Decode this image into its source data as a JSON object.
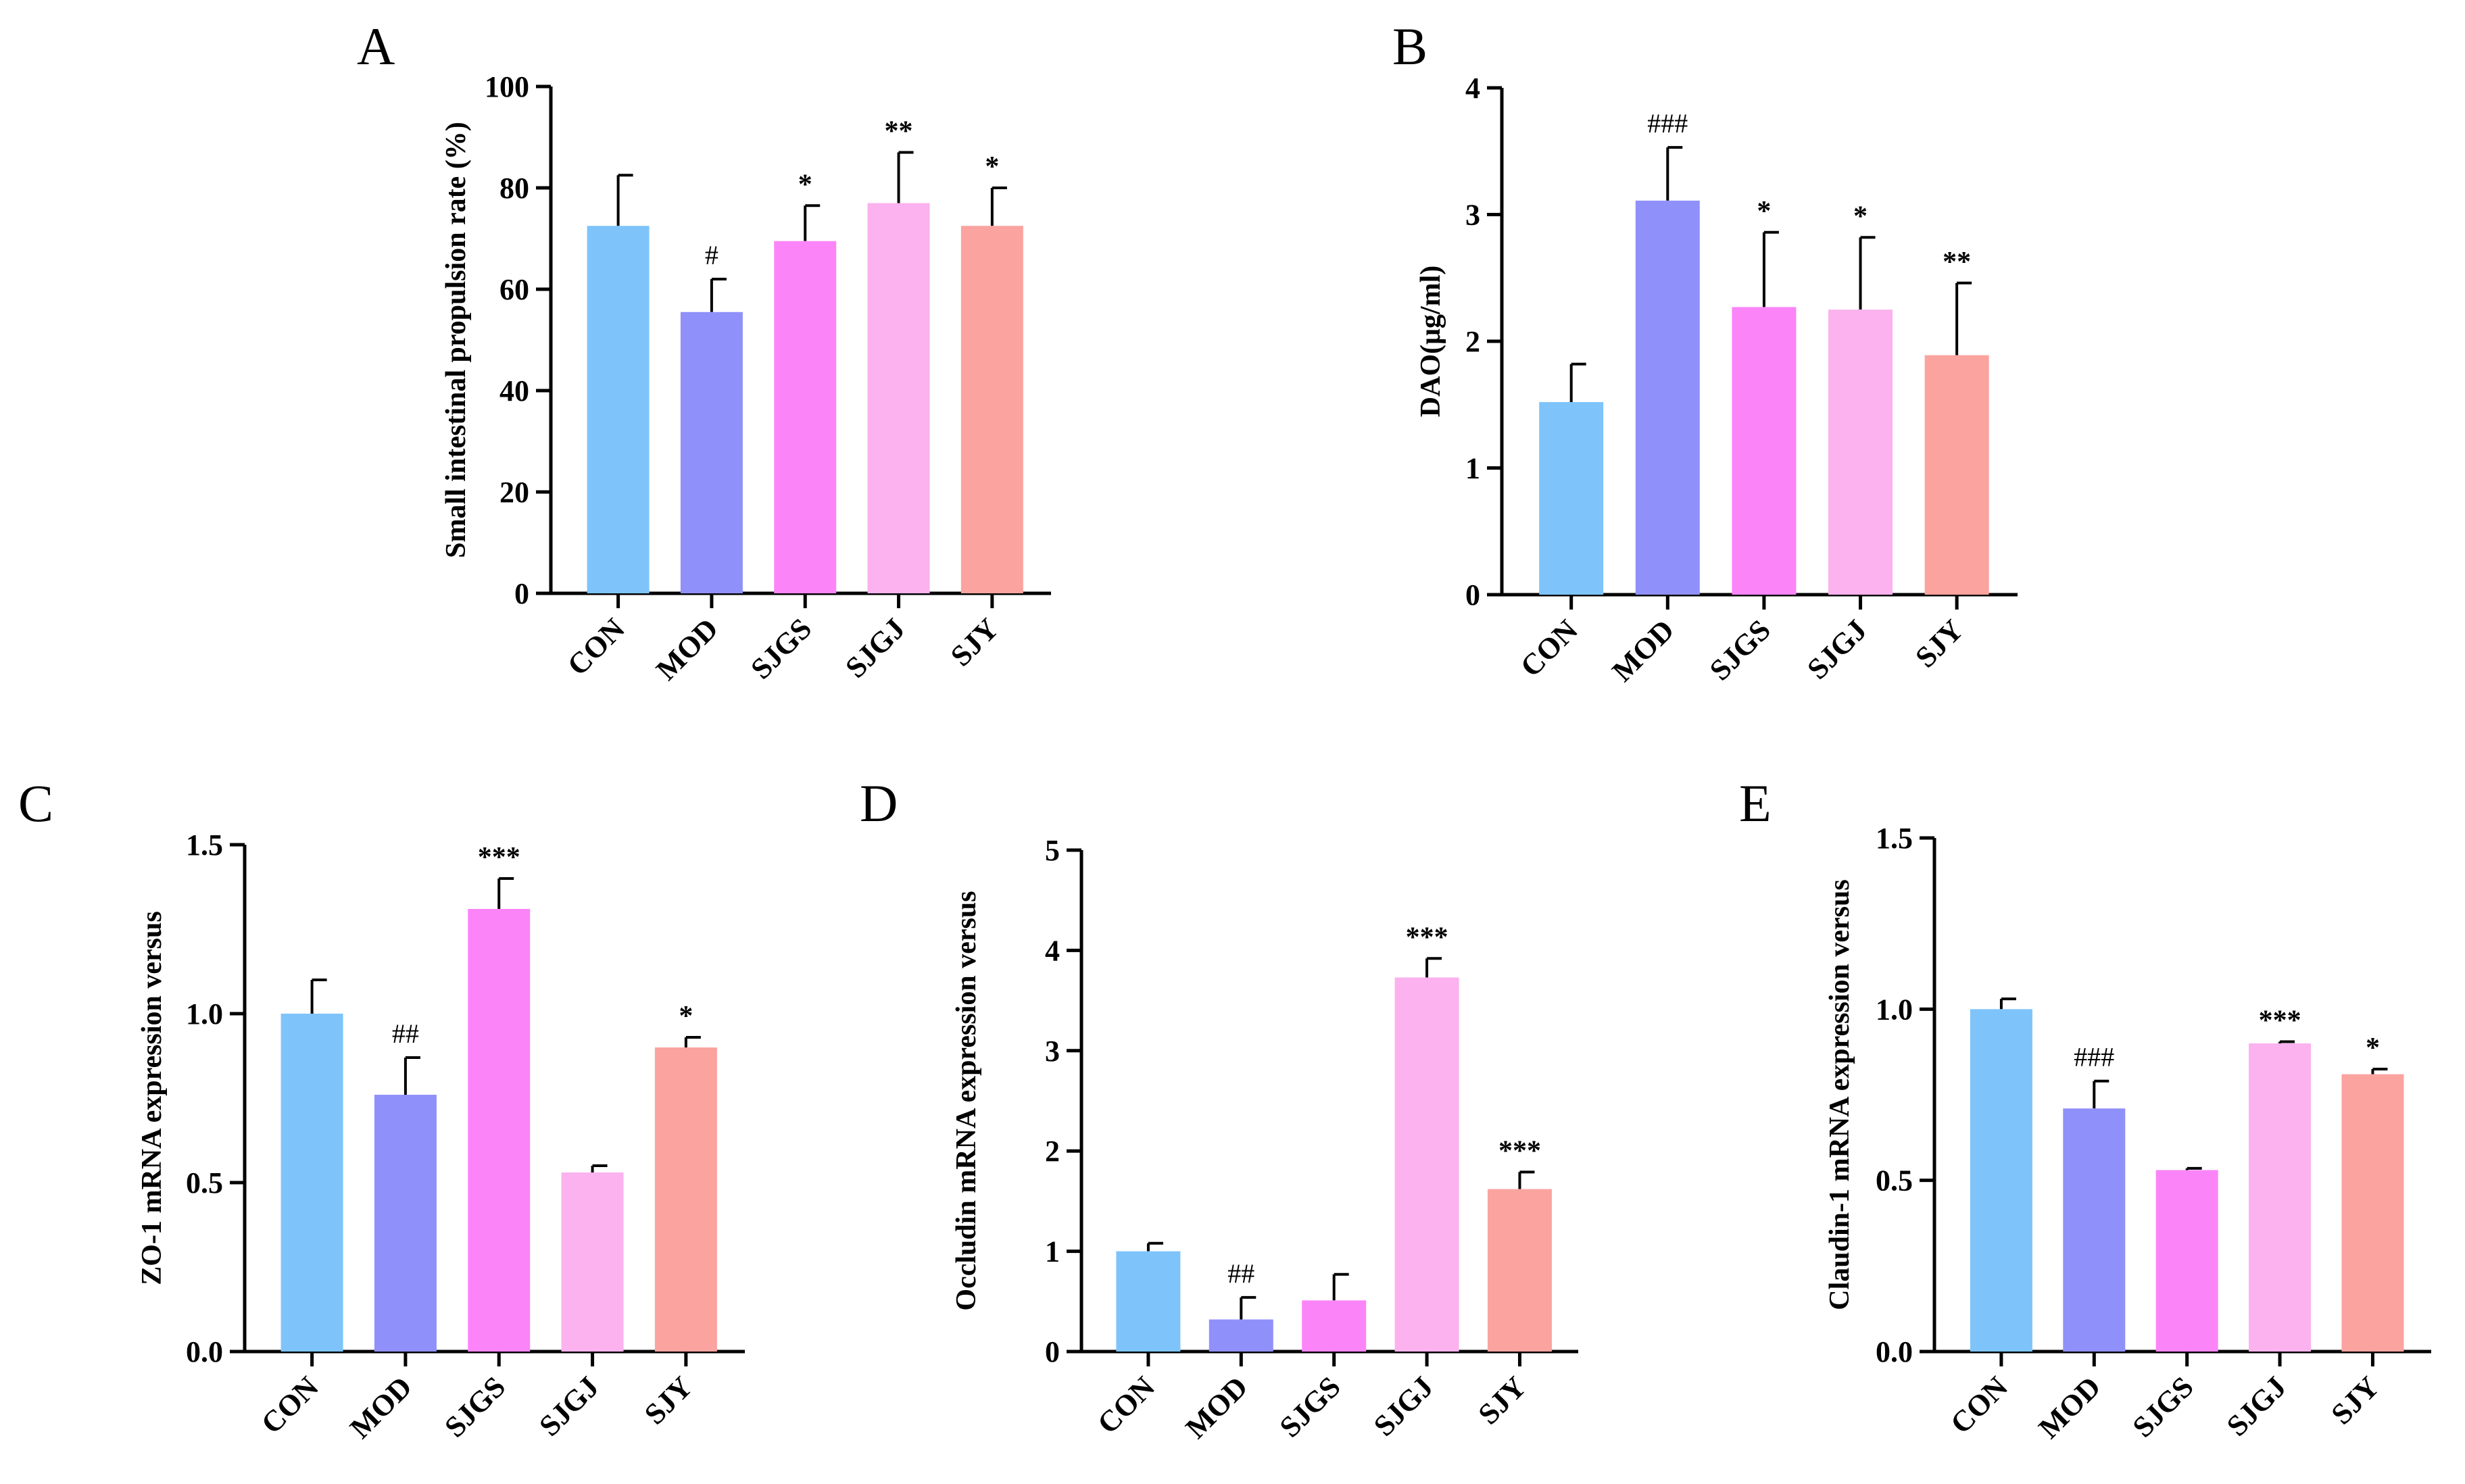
{
  "colors": [
    "#7ec4fb",
    "#9090fb",
    "#fb85f8",
    "#fbb2ee",
    "#fba39f"
  ],
  "chart_data": [
    {
      "panel": "A",
      "type": "bar",
      "categories": [
        "CON",
        "MOD",
        "SJGS",
        "SJGJ",
        "SJY"
      ],
      "values": [
        72.5,
        55.5,
        69.5,
        77,
        72.5
      ],
      "errors": [
        10,
        6.5,
        7,
        10,
        7.5
      ],
      "significance": [
        "",
        "#",
        "*",
        "**",
        "*"
      ],
      "ylabel": "Small intestinal propulsion rate (%)",
      "ylim": [
        0,
        100
      ],
      "yticks": [
        0,
        20,
        40,
        60,
        80,
        100
      ],
      "ytick_labels": [
        "0",
        "20",
        "40",
        "60",
        "80",
        "100"
      ]
    },
    {
      "panel": "B",
      "type": "bar",
      "categories": [
        "CON",
        "MOD",
        "SJGS",
        "SJGJ",
        "SJY"
      ],
      "values": [
        1.52,
        3.11,
        2.27,
        2.25,
        1.89
      ],
      "errors": [
        0.3,
        0.42,
        0.59,
        0.57,
        0.57
      ],
      "significance": [
        "",
        "###",
        "*",
        "*",
        "**"
      ],
      "ylabel": "DAO(μg/ml)",
      "ylim": [
        0,
        4
      ],
      "yticks": [
        0,
        1,
        2,
        3,
        4
      ],
      "ytick_labels": [
        "0",
        "1",
        "2",
        "3",
        "4"
      ]
    },
    {
      "panel": "C",
      "type": "bar",
      "categories": [
        "CON",
        "MOD",
        "SJGS",
        "SJGJ",
        "SJY"
      ],
      "values": [
        1.0,
        0.76,
        1.31,
        0.53,
        0.9
      ],
      "errors": [
        0.1,
        0.11,
        0.09,
        0.02,
        0.03
      ],
      "significance": [
        "",
        "##",
        "***",
        "",
        "*"
      ],
      "ylabel": "ZO-1 mRNA expression versus",
      "ylim": [
        0,
        1.5
      ],
      "yticks": [
        0,
        0.5,
        1.0,
        1.5
      ],
      "ytick_labels": [
        "0.0",
        "0.5",
        "1.0",
        "1.5"
      ]
    },
    {
      "panel": "D",
      "type": "bar",
      "categories": [
        "CON",
        "MOD",
        "SJGS",
        "SJGJ",
        "SJY"
      ],
      "values": [
        1.0,
        0.32,
        0.51,
        3.73,
        1.62
      ],
      "errors": [
        0.08,
        0.22,
        0.26,
        0.19,
        0.17
      ],
      "significance": [
        "",
        "##",
        "",
        "***",
        "***"
      ],
      "ylabel": "Occludin mRNA expression versus",
      "ylim": [
        0,
        5
      ],
      "yticks": [
        0,
        1,
        2,
        3,
        4,
        5
      ],
      "ytick_labels": [
        "0",
        "1",
        "2",
        "3",
        "4",
        "5"
      ]
    },
    {
      "panel": "E",
      "type": "bar",
      "categories": [
        "CON",
        "MOD",
        "SJGS",
        "SJGJ",
        "SJY"
      ],
      "values": [
        1.0,
        0.71,
        0.53,
        0.9,
        0.81
      ],
      "errors": [
        0.03,
        0.08,
        0.005,
        0.005,
        0.015
      ],
      "significance": [
        "",
        "###",
        "",
        "***",
        "*"
      ],
      "ylabel": "Claudin-1 mRNA expression versus",
      "ylim": [
        0,
        1.5
      ],
      "yticks": [
        0,
        0.5,
        1.0,
        1.5
      ],
      "ytick_labels": [
        "0.0",
        "0.5",
        "1.0",
        "1.5"
      ]
    }
  ]
}
